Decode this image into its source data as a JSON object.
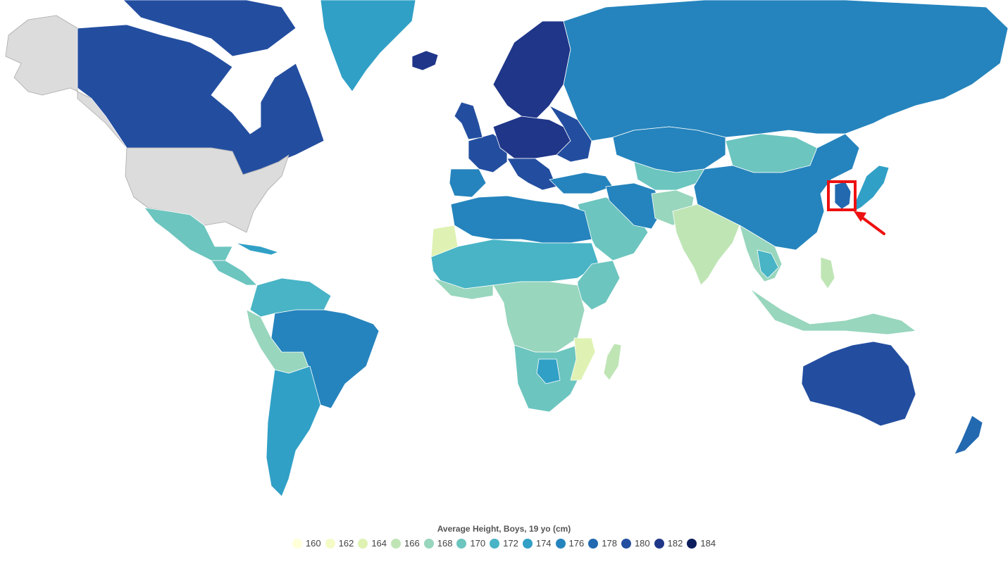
{
  "legend": {
    "title": "Average Height, Boys, 19 yo (cm)",
    "items": [
      {
        "label": "160",
        "color": "#ffffd9"
      },
      {
        "label": "162",
        "color": "#f4fbc6"
      },
      {
        "label": "164",
        "color": "#dff2b3"
      },
      {
        "label": "166",
        "color": "#bfe5b5"
      },
      {
        "label": "168",
        "color": "#98d6bd"
      },
      {
        "label": "170",
        "color": "#6cc5bf"
      },
      {
        "label": "172",
        "color": "#48b4c5"
      },
      {
        "label": "174",
        "color": "#31a0c6"
      },
      {
        "label": "176",
        "color": "#2584bd"
      },
      {
        "label": "178",
        "color": "#2269b0"
      },
      {
        "label": "180",
        "color": "#234ea0"
      },
      {
        "label": "182",
        "color": "#1f3689"
      },
      {
        "label": "184",
        "color": "#0c1f5c"
      }
    ]
  },
  "colors": {
    "no_data": "#dcdcdc",
    "highlight": "#ee1111",
    "border": "#ffffff"
  },
  "highlighted_region": "South Korea (highlight box with arrow)"
}
